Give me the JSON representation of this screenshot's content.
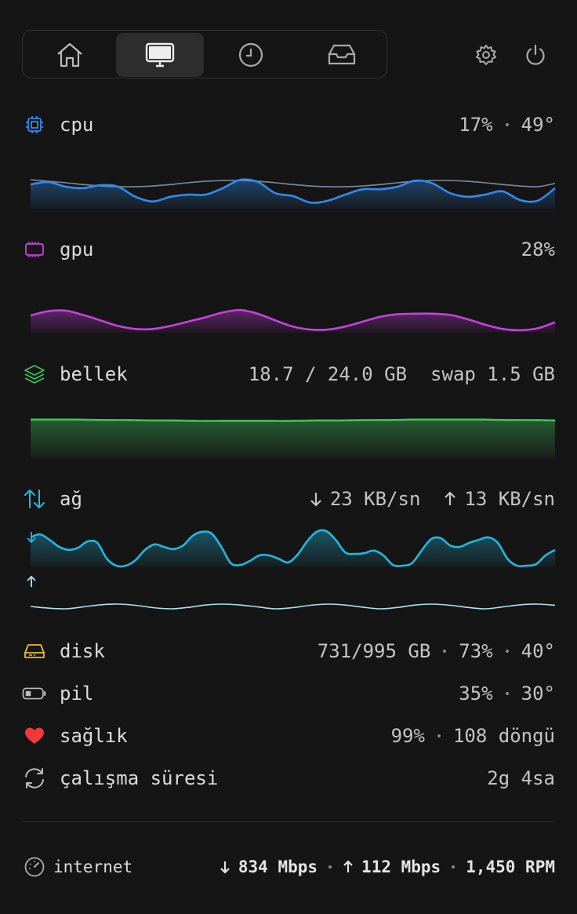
{
  "metrics": {
    "cpu": {
      "label": "cpu",
      "usage": "17%",
      "temperature": "49°",
      "chart": {
        "ylim": [
          0,
          100
        ],
        "series": [
          {
            "color": "#7f8a99",
            "values": [
              80,
              76,
              72,
              67,
              63,
              61,
              61,
              63,
              67,
              72,
              76,
              78,
              78,
              76,
              72,
              67,
              63,
              61,
              61,
              63,
              67,
              72,
              76,
              78,
              78,
              76,
              72,
              67,
              63,
              61,
              70
            ]
          },
          {
            "color": "#2f8cf0",
            "fill": true,
            "values": [
              67,
              74,
              61,
              57,
              65,
              61,
              33,
              20,
              33,
              39,
              39,
              57,
              80,
              74,
              43,
              35,
              17,
              22,
              39,
              54,
              54,
              61,
              78,
              70,
              43,
              33,
              39,
              48,
              24,
              22,
              57
            ]
          }
        ]
      }
    },
    "gpu": {
      "label": "gpu",
      "usage": "28%",
      "chart": {
        "ylim": [
          0,
          100
        ],
        "series": [
          {
            "color": "#c840e0",
            "fill": true,
            "values": [
              56,
              70,
              72,
              58,
              40,
              22,
              12,
              12,
              22,
              36,
              50,
              66,
              74,
              62,
              40,
              20,
              10,
              10,
              20,
              36,
              52,
              60,
              62,
              62,
              58,
              44,
              26,
              12,
              8,
              14,
              34
            ]
          }
        ]
      }
    },
    "memory": {
      "label": "bellek",
      "used": "18.7 / 24.0 GB",
      "swap": "swap 1.5 GB",
      "chart": {
        "ylim": [
          0,
          100
        ],
        "series": [
          {
            "color": "#3cc45a",
            "fill": true,
            "values": [
              91,
              91,
              91,
              90,
              90,
              89,
              89,
              88,
              88,
              88,
              88,
              88,
              89,
              89,
              90,
              90,
              91,
              91,
              91,
              91,
              90,
              90,
              89
            ]
          }
        ]
      }
    },
    "network": {
      "label": "ağ",
      "download": "23 KB/sn",
      "upload": "13 KB/sn",
      "download_chart": {
        "ylim": [
          0,
          100
        ],
        "series": [
          {
            "color": "#22b8e0",
            "fill": true,
            "values": [
              79,
              87,
              72,
              53,
              45,
              51,
              68,
              64,
              21,
              2,
              2,
              17,
              45,
              60,
              53,
              47,
              57,
              83,
              94,
              89,
              53,
              9,
              4,
              15,
              30,
              30,
              21,
              11,
              32,
              68,
              94,
              96,
              72,
              38,
              34,
              36,
              43,
              30,
              4,
              2,
              9,
              43,
              74,
              77,
              57,
              53,
              64,
              72,
              79,
              64,
              21,
              2,
              2,
              6,
              30,
              45
            ]
          }
        ]
      },
      "upload_chart": {
        "ylim": [
          0,
          100
        ],
        "series": [
          {
            "color": "#a8e4f4",
            "values": [
              40,
              33,
              30,
              38,
              47,
              50,
              45,
              35,
              30,
              36,
              46,
              50,
              46,
              38,
              30,
              35,
              45,
              50,
              46,
              37,
              30,
              36,
              46,
              50,
              45,
              36,
              30,
              38,
              47,
              50,
              45
            ]
          }
        ]
      }
    },
    "disk": {
      "label": "disk",
      "used": "731/995 GB",
      "percent": "73%",
      "temperature": "40°"
    },
    "battery": {
      "label": "pil",
      "percent": "35%",
      "temperature": "30°"
    },
    "health": {
      "label": "sağlık",
      "percent": "99%",
      "cycles": "108 döngü"
    },
    "uptime": {
      "label": "çalışma süresi",
      "value": "2g 4sa"
    }
  },
  "footer": {
    "label": "internet",
    "download": "834 Mbps",
    "upload": "112 Mbps",
    "fan": "1,450 RPM"
  }
}
